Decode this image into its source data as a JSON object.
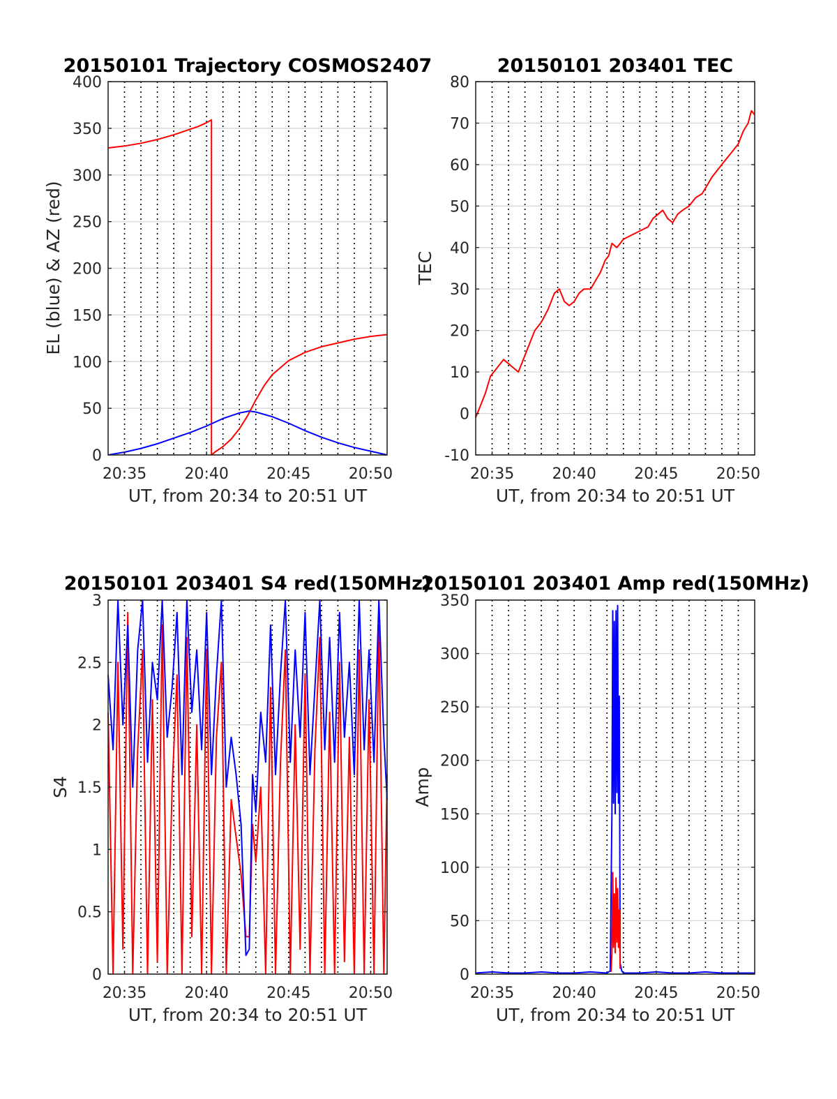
{
  "colors": {
    "red": "#ff0000",
    "blue": "#0000ff",
    "axis": "#262626",
    "grid": "#d9d9d9"
  },
  "chart_data": [
    {
      "id": "trajectory",
      "type": "line",
      "title": "20150101 Trajectory COSMOS2407",
      "xlabel": "UT, from 20:34 to 20:51 UT",
      "ylabel": "EL (blue) & AZ (red)",
      "xlim": [
        34.0,
        51.0
      ],
      "ylim": [
        0,
        400
      ],
      "yticks": [
        0,
        50,
        100,
        150,
        200,
        250,
        300,
        350,
        400
      ],
      "xticks": [
        {
          "value": 35,
          "label": "20:35"
        },
        {
          "value": 40,
          "label": "20:40"
        },
        {
          "value": 45,
          "label": "20:45"
        },
        {
          "value": 50,
          "label": "20:50"
        }
      ],
      "vgrid_minutes": [
        35,
        36,
        37,
        38,
        39,
        40,
        41,
        42,
        43,
        44,
        45,
        46,
        47,
        48,
        49,
        50
      ],
      "series": [
        {
          "color": "red",
          "x": [
            34.0,
            35.0,
            36.0,
            37.0,
            38.0,
            39.0,
            39.5,
            40.0,
            40.3,
            40.3,
            40.32,
            40.5,
            41.0,
            41.5,
            42.0,
            42.5,
            43.0,
            43.5,
            44.0,
            45.0,
            46.0,
            47.0,
            48.0,
            49.0,
            50.0,
            51.0
          ],
          "y": [
            329,
            331,
            334,
            338,
            343,
            349,
            352,
            356,
            359,
            0,
            0,
            3,
            9,
            17,
            28,
            42,
            59,
            74,
            86,
            101,
            110,
            116,
            120,
            124,
            127,
            129
          ]
        },
        {
          "color": "blue",
          "x": [
            34.0,
            35.0,
            36.0,
            37.0,
            38.0,
            39.0,
            40.0,
            41.0,
            42.0,
            42.6,
            43.0,
            44.0,
            45.0,
            46.0,
            47.0,
            48.0,
            49.0,
            50.0,
            51.0
          ],
          "y": [
            0,
            3,
            7,
            12,
            18,
            24,
            31,
            39,
            45,
            47,
            46,
            41,
            34,
            26,
            19,
            13,
            8,
            4,
            0
          ]
        }
      ]
    },
    {
      "id": "tec",
      "type": "line",
      "title": "20150101 203401 TEC",
      "xlabel": "UT, from 20:34 to 20:51 UT",
      "ylabel": "TEC",
      "xlim": [
        34.0,
        51.0
      ],
      "ylim": [
        -10,
        80
      ],
      "yticks": [
        -10,
        0,
        10,
        20,
        30,
        40,
        50,
        60,
        70,
        80
      ],
      "xticks": [
        {
          "value": 35,
          "label": "20:35"
        },
        {
          "value": 40,
          "label": "20:40"
        },
        {
          "value": 45,
          "label": "20:45"
        },
        {
          "value": 50,
          "label": "20:50"
        }
      ],
      "vgrid_minutes": [
        35,
        36,
        37,
        38,
        39,
        40,
        41,
        42,
        43,
        44,
        45,
        46,
        47,
        48,
        49,
        50
      ],
      "series": [
        {
          "color": "red",
          "x": [
            34.0,
            34.3,
            34.6,
            34.9,
            35.3,
            35.7,
            36.0,
            36.3,
            36.6,
            37.0,
            37.3,
            37.6,
            38.0,
            38.4,
            38.8,
            39.1,
            39.4,
            39.7,
            40.0,
            40.3,
            40.6,
            41.0,
            41.3,
            41.6,
            41.9,
            42.1,
            42.3,
            42.6,
            43.0,
            43.5,
            44.0,
            44.5,
            44.8,
            45.1,
            45.4,
            45.7,
            46.0,
            46.3,
            46.6,
            47.0,
            47.4,
            47.8,
            48.1,
            48.4,
            48.8,
            49.2,
            49.6,
            50.0,
            50.3,
            50.6,
            50.8,
            51.0
          ],
          "y": [
            -1,
            2,
            5,
            9,
            11,
            13,
            12,
            11,
            10,
            14,
            17,
            20,
            22,
            25,
            29,
            30,
            27,
            26,
            27,
            29,
            30,
            30,
            32,
            34,
            37,
            38,
            41,
            40,
            42,
            43,
            44,
            45,
            47,
            48,
            49,
            47,
            46,
            48,
            49,
            50,
            52,
            53,
            55,
            57,
            59,
            61,
            63,
            65,
            68,
            70,
            73,
            72
          ]
        }
      ]
    },
    {
      "id": "s4",
      "type": "line",
      "title": "20150101 203401 S4 red(150MHz)",
      "xlabel": "UT, from 20:34 to 20:51 UT",
      "ylabel": "S4",
      "xlim": [
        34.0,
        51.0
      ],
      "ylim": [
        0,
        3
      ],
      "yticks": [
        0,
        0.5,
        1,
        1.5,
        2,
        2.5,
        3
      ],
      "xticks": [
        {
          "value": 35,
          "label": "20:35"
        },
        {
          "value": 40,
          "label": "20:40"
        },
        {
          "value": 45,
          "label": "20:45"
        },
        {
          "value": 50,
          "label": "20:50"
        }
      ],
      "vgrid_minutes": [
        35,
        36,
        37,
        38,
        39,
        40,
        41,
        42,
        43,
        44,
        45,
        46,
        47,
        48,
        49,
        50
      ],
      "series": [
        {
          "color": "red",
          "x": [
            34.0,
            34.3,
            34.6,
            34.9,
            35.2,
            35.5,
            35.8,
            36.1,
            36.4,
            36.7,
            37.0,
            37.3,
            37.6,
            37.9,
            38.2,
            38.5,
            38.8,
            39.1,
            39.4,
            39.7,
            40.0,
            40.3,
            40.6,
            40.9,
            41.2,
            41.5,
            41.8,
            42.1,
            42.4,
            42.6,
            42.8,
            43.0,
            43.3,
            43.6,
            43.9,
            44.2,
            44.5,
            44.8,
            45.1,
            45.4,
            45.7,
            46.0,
            46.3,
            46.6,
            46.9,
            47.2,
            47.5,
            47.8,
            48.1,
            48.4,
            48.7,
            49.0,
            49.3,
            49.6,
            49.9,
            50.2,
            50.5,
            50.8,
            51.0
          ],
          "y": [
            2.1,
            0,
            2.5,
            0.2,
            2.9,
            0,
            1.8,
            2.6,
            0,
            2.2,
            0.1,
            2.8,
            0,
            1.5,
            2.4,
            0,
            2.7,
            0.3,
            2.0,
            0,
            2.6,
            0,
            1.9,
            2.5,
            0,
            1.4,
            1.1,
            0.8,
            0.3,
            0.3,
            1.2,
            0.9,
            1.5,
            0,
            2.3,
            0,
            1.7,
            2.6,
            0,
            2.0,
            0.2,
            2.4,
            0,
            1.8,
            2.7,
            0,
            2.1,
            0,
            2.5,
            0.1,
            1.9,
            0,
            2.6,
            0,
            2.2,
            0,
            2.8,
            0,
            1.6
          ]
        },
        {
          "color": "blue",
          "x": [
            34.0,
            34.3,
            34.6,
            34.9,
            35.2,
            35.5,
            35.8,
            36.1,
            36.4,
            36.7,
            37.0,
            37.3,
            37.6,
            37.9,
            38.2,
            38.5,
            38.8,
            39.1,
            39.4,
            39.7,
            40.0,
            40.3,
            40.6,
            40.9,
            41.2,
            41.5,
            41.8,
            42.1,
            42.4,
            42.6,
            42.8,
            43.0,
            43.3,
            43.6,
            43.9,
            44.2,
            44.5,
            44.8,
            45.1,
            45.4,
            45.7,
            46.0,
            46.3,
            46.6,
            46.9,
            47.2,
            47.5,
            47.8,
            48.1,
            48.4,
            48.7,
            49.0,
            49.3,
            49.6,
            49.9,
            50.2,
            50.5,
            50.8,
            51.0
          ],
          "y": [
            2.4,
            1.8,
            3.0,
            2.0,
            2.8,
            1.5,
            2.6,
            3.0,
            1.7,
            2.5,
            2.2,
            3.0,
            1.9,
            2.3,
            2.9,
            1.6,
            3.0,
            2.1,
            2.6,
            1.8,
            2.9,
            1.6,
            2.4,
            3.0,
            1.5,
            1.9,
            1.6,
            1.2,
            0.15,
            0.2,
            1.6,
            1.3,
            2.1,
            1.7,
            2.8,
            1.6,
            2.4,
            3.0,
            1.7,
            2.6,
            1.9,
            2.9,
            1.6,
            2.3,
            3.0,
            1.8,
            2.7,
            1.7,
            2.9,
            1.9,
            2.5,
            1.6,
            3.0,
            1.8,
            2.6,
            1.7,
            3.0,
            1.9,
            1.4
          ]
        }
      ]
    },
    {
      "id": "amp",
      "type": "line",
      "title": "20150101 203401 Amp red(150MHz)",
      "xlabel": "UT, from 20:34 to 20:51 UT",
      "ylabel": "Amp",
      "xlim": [
        34.0,
        51.0
      ],
      "ylim": [
        0,
        350
      ],
      "yticks": [
        0,
        50,
        100,
        150,
        200,
        250,
        300,
        350
      ],
      "xticks": [
        {
          "value": 35,
          "label": "20:35"
        },
        {
          "value": 40,
          "label": "20:40"
        },
        {
          "value": 45,
          "label": "20:45"
        },
        {
          "value": 50,
          "label": "20:50"
        }
      ],
      "vgrid_minutes": [
        35,
        36,
        37,
        38,
        39,
        40,
        41,
        42,
        43,
        44,
        45,
        46,
        47,
        48,
        49,
        50
      ],
      "series": [
        {
          "color": "blue",
          "x": [
            34.0,
            35.0,
            36.0,
            37.0,
            38.0,
            39.0,
            40.0,
            41.0,
            42.0,
            42.2,
            42.3,
            42.35,
            42.4,
            42.45,
            42.5,
            42.55,
            42.6,
            42.65,
            42.7,
            42.75,
            42.8,
            42.9,
            43.0,
            44.0,
            45.0,
            46.0,
            47.0,
            48.0,
            49.0,
            50.0,
            51.0
          ],
          "y": [
            1,
            2,
            1,
            1,
            2,
            1,
            1,
            2,
            1,
            3,
            150,
            340,
            160,
            330,
            150,
            340,
            170,
            345,
            160,
            260,
            10,
            3,
            1,
            1,
            2,
            1,
            1,
            2,
            1,
            1,
            1
          ]
        },
        {
          "color": "red",
          "x": [
            42.25,
            42.3,
            42.35,
            42.4,
            42.45,
            42.5,
            42.55,
            42.6,
            42.65,
            42.7,
            42.75,
            42.8
          ],
          "y": [
            2,
            20,
            95,
            25,
            75,
            20,
            90,
            30,
            80,
            25,
            60,
            5
          ]
        }
      ]
    }
  ]
}
